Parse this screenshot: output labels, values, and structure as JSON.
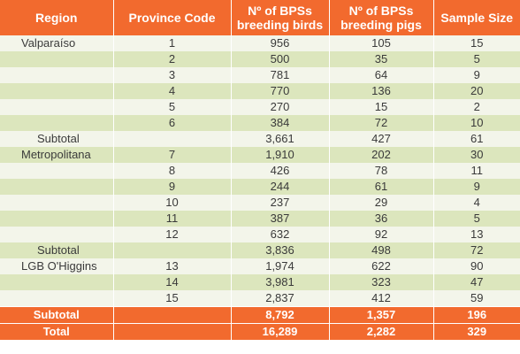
{
  "header": {
    "region": "Region",
    "province_code": "Province Code",
    "bps_birds": "Nº of BPSs breeding birds",
    "bps_pigs": "Nº of BPSs breeding pigs",
    "sample_size": "Sample Size"
  },
  "rows": [
    {
      "region": "Valparaíso",
      "code": "1",
      "birds": "956",
      "pigs": "105",
      "sample": "15",
      "type": "region"
    },
    {
      "region": "",
      "code": "2",
      "birds": "500",
      "pigs": "35",
      "sample": "5",
      "type": "data"
    },
    {
      "region": "",
      "code": "3",
      "birds": "781",
      "pigs": "64",
      "sample": "9",
      "type": "data"
    },
    {
      "region": "",
      "code": "4",
      "birds": "770",
      "pigs": "136",
      "sample": "20",
      "type": "data"
    },
    {
      "region": "",
      "code": "5",
      "birds": "270",
      "pigs": "15",
      "sample": "2",
      "type": "data"
    },
    {
      "region": "",
      "code": "6",
      "birds": "384",
      "pigs": "72",
      "sample": "10",
      "type": "data"
    },
    {
      "region": "Subtotal",
      "code": "",
      "birds": "3,661",
      "pigs": "427",
      "sample": "61",
      "type": "subtotal"
    },
    {
      "region": "Metropolitana",
      "code": "7",
      "birds": "1,910",
      "pigs": "202",
      "sample": "30",
      "type": "region"
    },
    {
      "region": "",
      "code": "8",
      "birds": "426",
      "pigs": "78",
      "sample": "11",
      "type": "data"
    },
    {
      "region": "",
      "code": "9",
      "birds": "244",
      "pigs": "61",
      "sample": "9",
      "type": "data"
    },
    {
      "region": "",
      "code": "10",
      "birds": "237",
      "pigs": "29",
      "sample": "4",
      "type": "data"
    },
    {
      "region": "",
      "code": "11",
      "birds": "387",
      "pigs": "36",
      "sample": "5",
      "type": "data"
    },
    {
      "region": "",
      "code": "12",
      "birds": "632",
      "pigs": "92",
      "sample": "13",
      "type": "data"
    },
    {
      "region": "Subtotal",
      "code": "",
      "birds": "3,836",
      "pigs": "498",
      "sample": "72",
      "type": "subtotal"
    },
    {
      "region": "LGB O'Higgins",
      "code": "13",
      "birds": "1,974",
      "pigs": "622",
      "sample": "90",
      "type": "region"
    },
    {
      "region": "",
      "code": "14",
      "birds": "3,981",
      "pigs": "323",
      "sample": "47",
      "type": "data"
    },
    {
      "region": "",
      "code": "15",
      "birds": "2,837",
      "pigs": "412",
      "sample": "59",
      "type": "data"
    }
  ],
  "footer": [
    {
      "region": "Subtotal",
      "code": "",
      "birds": "8,792",
      "pigs": "1,357",
      "sample": "196"
    },
    {
      "region": "Total",
      "code": "",
      "birds": "16,289",
      "pigs": "2,282",
      "sample": "329"
    }
  ],
  "colors": {
    "header_bg": "#f26a2e",
    "row_light": "#f3f5ea",
    "row_green": "#dce6bd",
    "text": "#3a3a3a"
  }
}
